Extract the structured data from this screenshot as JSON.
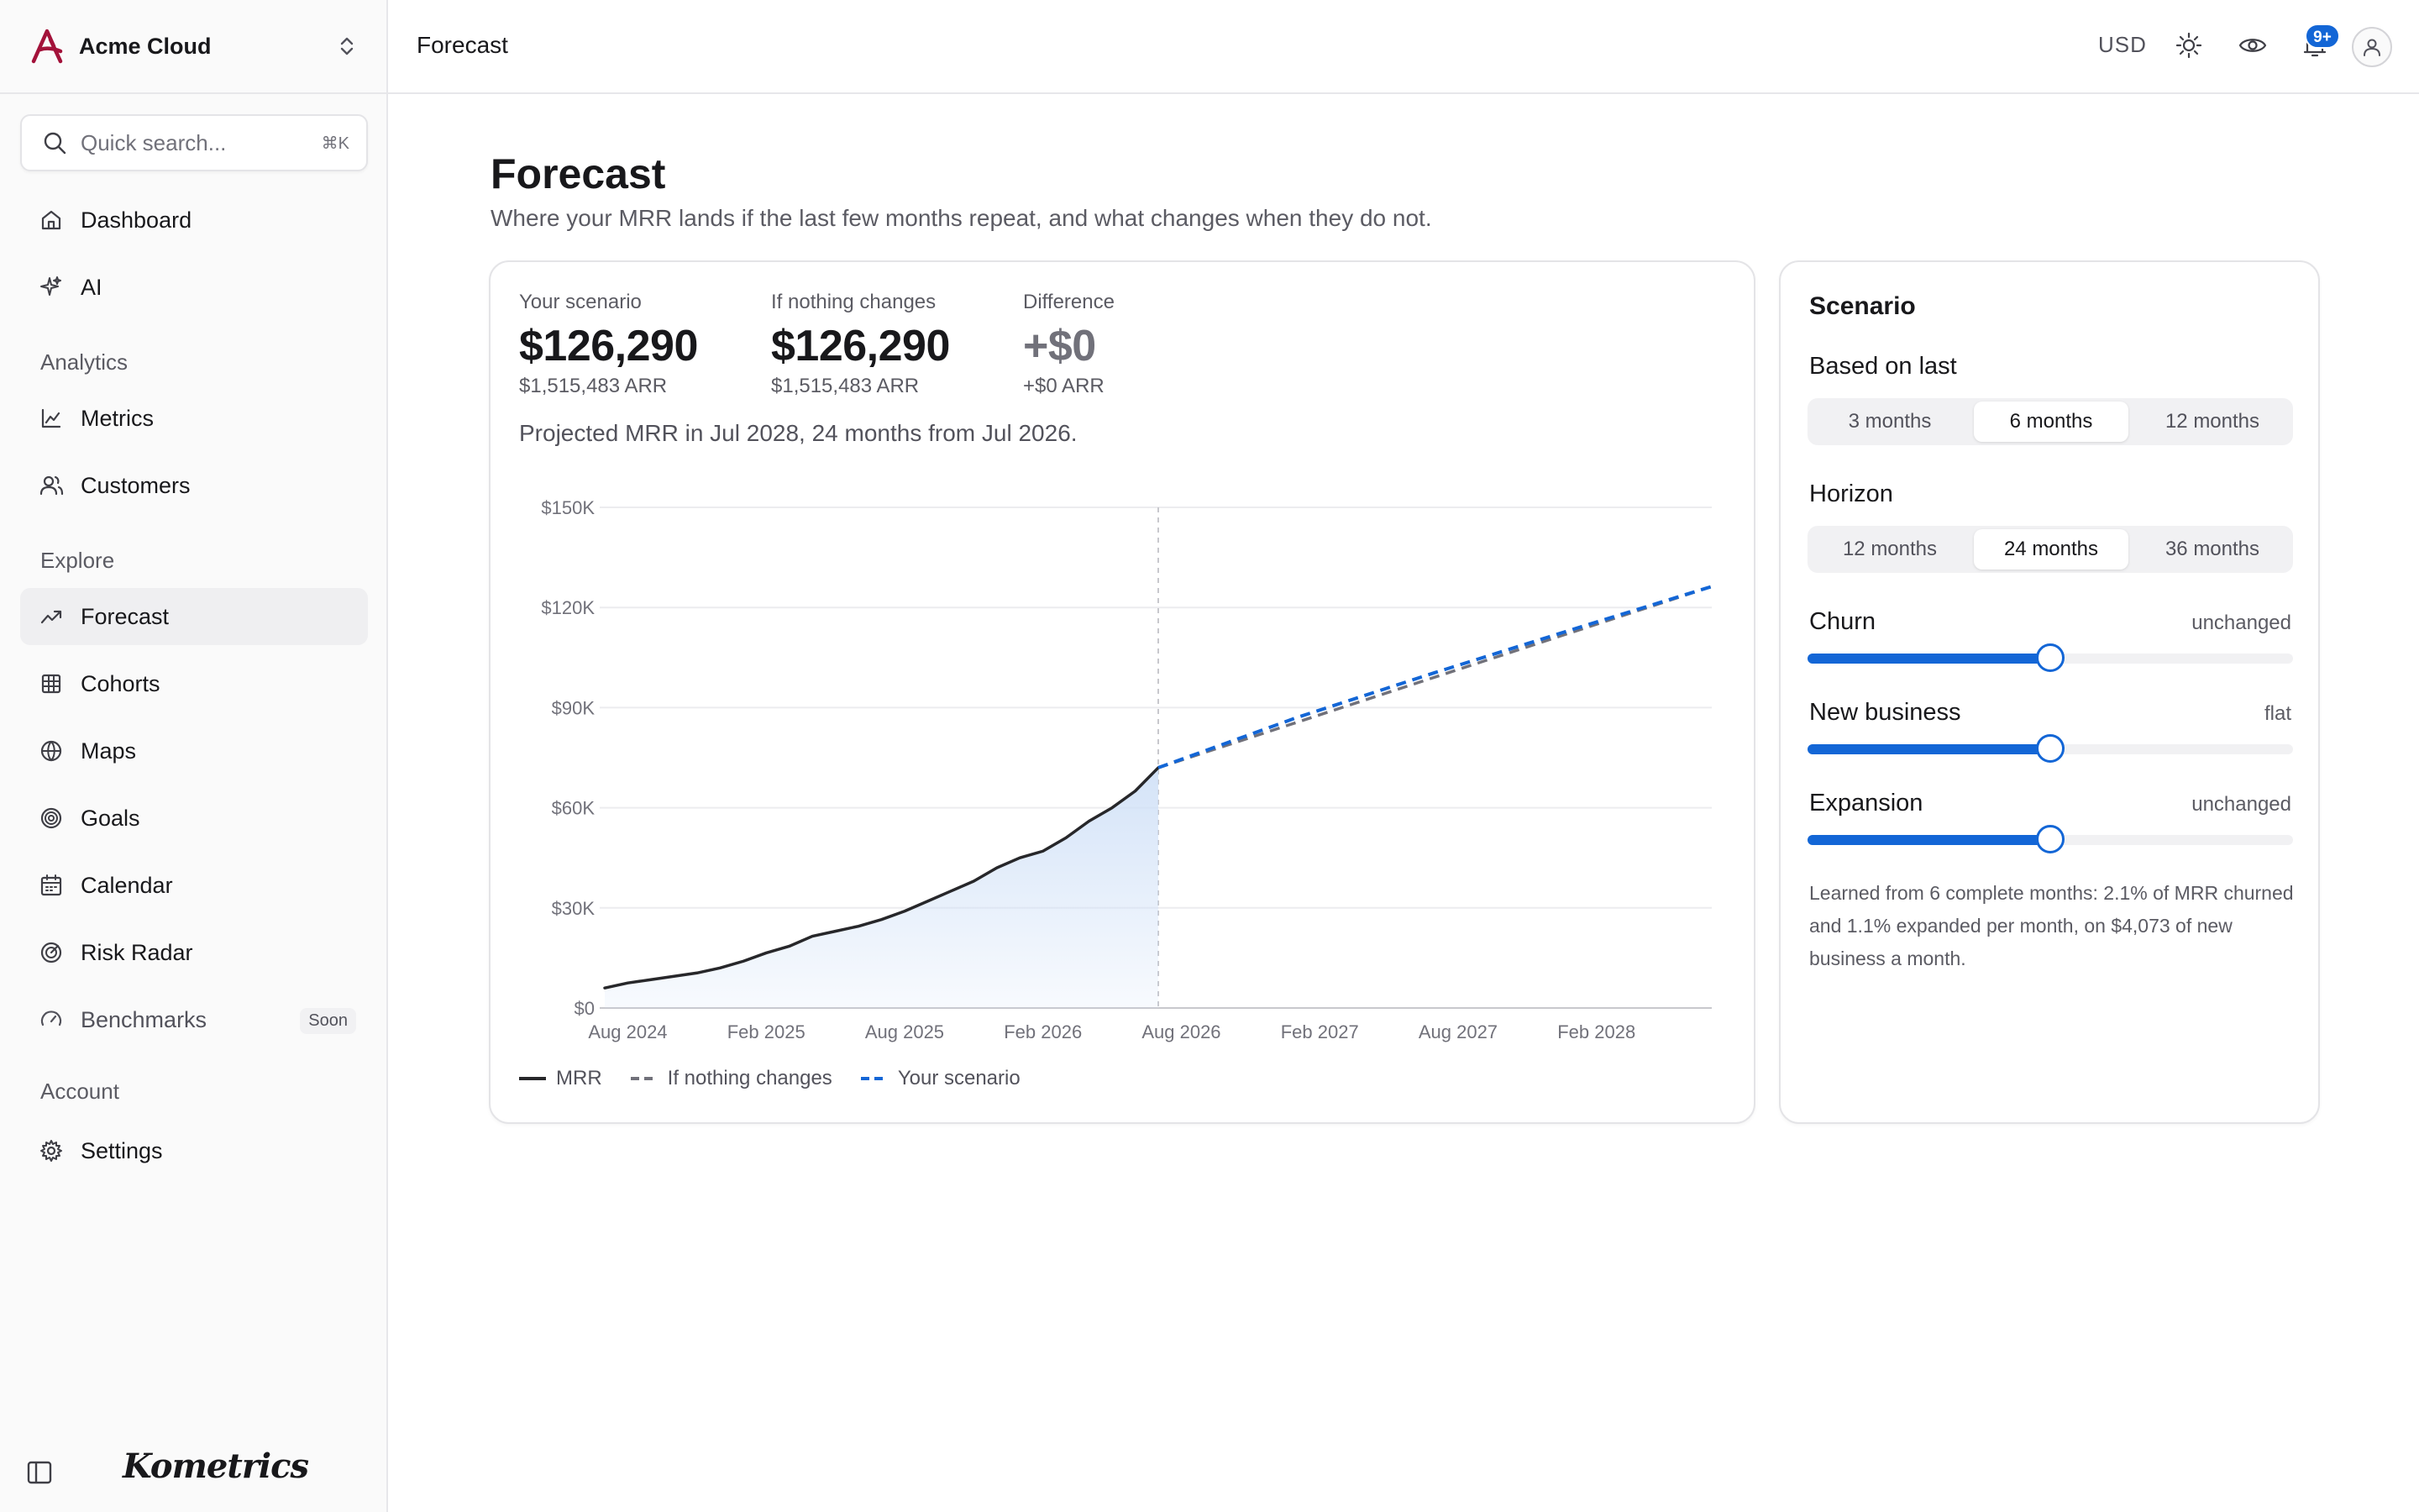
{
  "app": {
    "org_name": "Acme Cloud",
    "brand": "Kometrics"
  },
  "search": {
    "placeholder": "Quick search...",
    "shortcut": "⌘K"
  },
  "nav": {
    "top": [
      {
        "label": "Dashboard",
        "icon": "home-icon"
      },
      {
        "label": "AI",
        "icon": "sparkles-icon"
      }
    ],
    "analytics_heading": "Analytics",
    "analytics": [
      {
        "label": "Metrics",
        "icon": "line-chart-icon"
      },
      {
        "label": "Customers",
        "icon": "users-icon"
      }
    ],
    "explore_heading": "Explore",
    "explore": [
      {
        "label": "Forecast",
        "icon": "trending-up-icon",
        "active": true
      },
      {
        "label": "Cohorts",
        "icon": "grid-icon"
      },
      {
        "label": "Maps",
        "icon": "globe-icon"
      },
      {
        "label": "Goals",
        "icon": "target-icon"
      },
      {
        "label": "Calendar",
        "icon": "calendar-icon"
      },
      {
        "label": "Risk Radar",
        "icon": "radar-icon"
      },
      {
        "label": "Benchmarks",
        "icon": "gauge-icon",
        "badge": "Soon"
      }
    ],
    "account_heading": "Account",
    "account": [
      {
        "label": "Settings",
        "icon": "gear-icon"
      }
    ]
  },
  "topbar": {
    "title": "Forecast",
    "currency": "USD",
    "notifications_badge": "9+"
  },
  "page": {
    "title": "Forecast",
    "subtitle": "Where your MRR lands if the last few months repeat, and what changes when they do not."
  },
  "kpis": [
    {
      "label": "Your scenario",
      "value": "$126,290",
      "sub": "$1,515,483 ARR"
    },
    {
      "label": "If nothing changes",
      "value": "$126,290",
      "sub": "$1,515,483 ARR"
    },
    {
      "label": "Difference",
      "value": "+$0",
      "sub": "+$0 ARR"
    }
  ],
  "projection_note": "Projected MRR in Jul 2028, 24 months from Jul 2026.",
  "chart_data": {
    "type": "line",
    "y_ticks": [
      "$0",
      "$30K",
      "$60K",
      "$90K",
      "$120K",
      "$150K"
    ],
    "x_ticks": [
      "Aug 2024",
      "Feb 2025",
      "Aug 2025",
      "Feb 2026",
      "Aug 2026",
      "Feb 2027",
      "Aug 2027",
      "Feb 2028"
    ],
    "ylim": [
      0,
      150000
    ],
    "grid": true,
    "legend_position": "bottom-left",
    "colors": {
      "mrr": "#27272a",
      "baseline": "#71717a",
      "scenario": "#1366d6",
      "area": "#cfe0f7"
    },
    "series": [
      {
        "name": "MRR",
        "x": [
          "Jul 2024",
          "Aug 2024",
          "Sep 2024",
          "Oct 2024",
          "Nov 2024",
          "Dec 2024",
          "Jan 2025",
          "Feb 2025",
          "Mar 2025",
          "Apr 2025",
          "May 2025",
          "Jun 2025",
          "Jul 2025",
          "Aug 2025",
          "Sep 2025",
          "Oct 2025",
          "Nov 2025",
          "Dec 2025",
          "Jan 2026",
          "Feb 2026",
          "Mar 2026",
          "Apr 2026",
          "May 2026",
          "Jun 2026",
          "Jul 2026"
        ],
        "values": [
          6000,
          7500,
          8500,
          9500,
          10500,
          12000,
          14000,
          16500,
          18500,
          21500,
          23000,
          24500,
          26500,
          29000,
          32000,
          35000,
          38000,
          42000,
          45000,
          47000,
          51000,
          56000,
          60000,
          65000,
          72000
        ]
      },
      {
        "name": "If nothing changes",
        "x": [
          "Jul 2026",
          "Jul 2028"
        ],
        "values": [
          72000,
          126290
        ]
      },
      {
        "name": "Your scenario",
        "x": [
          "Jul 2026",
          "Jan 2027",
          "Jul 2027",
          "Jan 2028",
          "Jul 2028"
        ],
        "values": [
          72000,
          87000,
          100500,
          113500,
          126290
        ]
      }
    ]
  },
  "scenario": {
    "title": "Scenario",
    "based_on_label": "Based on last",
    "based_on_options": [
      "3 months",
      "6 months",
      "12 months"
    ],
    "based_on_selected": 1,
    "horizon_label": "Horizon",
    "horizon_options": [
      "12 months",
      "24 months",
      "36 months"
    ],
    "horizon_selected": 1,
    "sliders": [
      {
        "label": "Churn",
        "value_text": "unchanged",
        "level": 0.5
      },
      {
        "label": "New business",
        "value_text": "flat",
        "level": 0.5
      },
      {
        "label": "Expansion",
        "value_text": "unchanged",
        "level": 0.5
      }
    ],
    "footnote": "Learned from 6 complete months: 2.1% of MRR churned and 1.1% expanded per month, on $4,073 of new business a month."
  }
}
